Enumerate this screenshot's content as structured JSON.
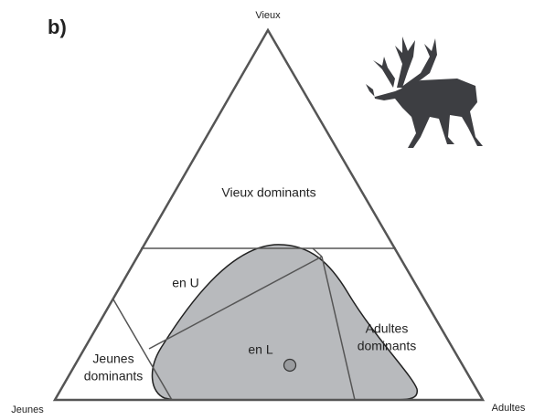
{
  "panel_label": "b)",
  "vertices": {
    "top": "Vieux",
    "left": "Jeunes",
    "right": "Adultes"
  },
  "regions": {
    "vieux_dominants": [
      "Vieux dominants"
    ],
    "en_u": [
      "en U"
    ],
    "jeunes_dominants": [
      "Jeunes",
      "dominants"
    ],
    "adultes_dominants": [
      "Adultes",
      "dominants"
    ],
    "en_l": [
      "en L"
    ]
  }
}
